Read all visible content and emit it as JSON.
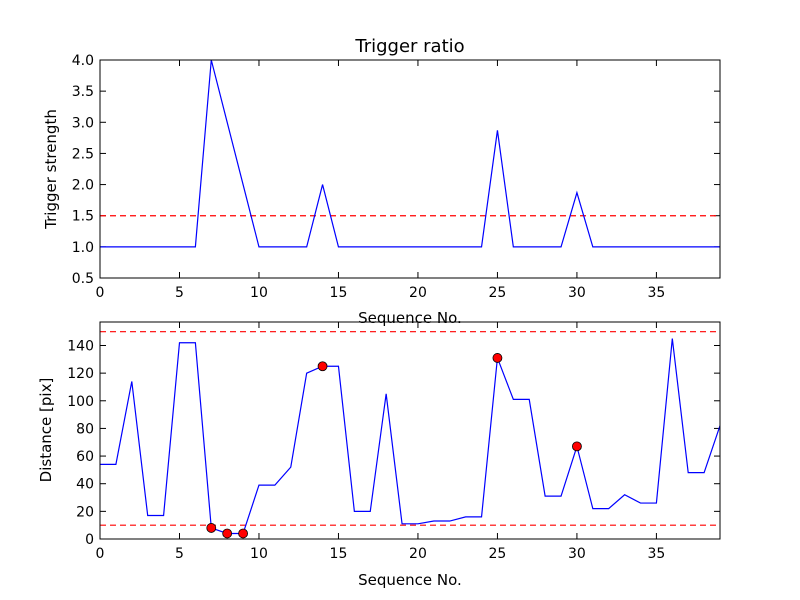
{
  "chart_data": [
    {
      "type": "line",
      "title": "Trigger ratio",
      "xlabel": "Sequence No.",
      "ylabel": "Trigger strength",
      "xlim": [
        0,
        39
      ],
      "ylim": [
        0.5,
        4.0
      ],
      "xticks": [
        0,
        5,
        10,
        15,
        20,
        25,
        30,
        35
      ],
      "yticks": [
        0.5,
        1.0,
        1.5,
        2.0,
        2.5,
        3.0,
        3.5,
        4.0
      ],
      "ytick_labels": [
        "0.5",
        "1.0",
        "1.5",
        "2.0",
        "2.5",
        "3.0",
        "3.5",
        "4.0"
      ],
      "grid": false,
      "series": [
        {
          "color": "#0000ff",
          "x": [
            0,
            1,
            2,
            3,
            4,
            5,
            6,
            7,
            8,
            9,
            10,
            11,
            12,
            13,
            14,
            15,
            16,
            17,
            18,
            19,
            20,
            21,
            22,
            23,
            24,
            25,
            26,
            27,
            28,
            29,
            30,
            31,
            32,
            33,
            34,
            35,
            36,
            37,
            38,
            39
          ],
          "values": [
            1.0,
            1.0,
            1.0,
            1.0,
            1.0,
            1.0,
            1.0,
            4.0,
            3.0,
            2.0,
            1.0,
            1.0,
            1.0,
            1.0,
            2.0,
            1.0,
            1.0,
            1.0,
            1.0,
            1.0,
            1.0,
            1.0,
            1.0,
            1.0,
            1.0,
            2.87,
            1.0,
            1.0,
            1.0,
            1.0,
            1.87,
            1.0,
            1.0,
            1.0,
            1.0,
            1.0,
            1.0,
            1.0,
            1.0,
            1.0
          ]
        }
      ],
      "hlines": [
        {
          "y": 1.5,
          "color": "#ff0000",
          "style": "dashed"
        }
      ]
    },
    {
      "type": "line",
      "title": "",
      "xlabel": "Sequence No.",
      "ylabel": "Distance [pix]",
      "xlim": [
        0,
        39
      ],
      "ylim": [
        0,
        157
      ],
      "xticks": [
        0,
        5,
        10,
        15,
        20,
        25,
        30,
        35
      ],
      "yticks": [
        0,
        20,
        40,
        60,
        80,
        100,
        120,
        140
      ],
      "ytick_labels": [
        "0",
        "20",
        "40",
        "60",
        "80",
        "100",
        "120",
        "140"
      ],
      "grid": false,
      "series": [
        {
          "color": "#0000ff",
          "x": [
            0,
            1,
            2,
            3,
            4,
            5,
            6,
            7,
            8,
            9,
            10,
            11,
            12,
            13,
            14,
            15,
            16,
            17,
            18,
            19,
            20,
            21,
            22,
            23,
            24,
            25,
            26,
            27,
            28,
            29,
            30,
            31,
            32,
            33,
            34,
            35,
            36,
            37,
            38,
            39
          ],
          "values": [
            54,
            54,
            114,
            17,
            17,
            142,
            142,
            8,
            4,
            4,
            39,
            39,
            52,
            120,
            125,
            125,
            20,
            20,
            105,
            11,
            11,
            13,
            13,
            16,
            16,
            131,
            101,
            101,
            31,
            31,
            67,
            22,
            22,
            32,
            26,
            26,
            145,
            48,
            48,
            82
          ]
        }
      ],
      "markers": {
        "color": "#ff0000",
        "edge_color": "#000000",
        "points": [
          {
            "x": 7,
            "y": 8
          },
          {
            "x": 8,
            "y": 4
          },
          {
            "x": 9,
            "y": 4
          },
          {
            "x": 14,
            "y": 125
          },
          {
            "x": 25,
            "y": 131
          },
          {
            "x": 30,
            "y": 67
          }
        ]
      },
      "hlines": [
        {
          "y": 150,
          "color": "#ff0000",
          "style": "dashed"
        },
        {
          "y": 10,
          "color": "#ff0000",
          "style": "dashed"
        }
      ]
    }
  ]
}
